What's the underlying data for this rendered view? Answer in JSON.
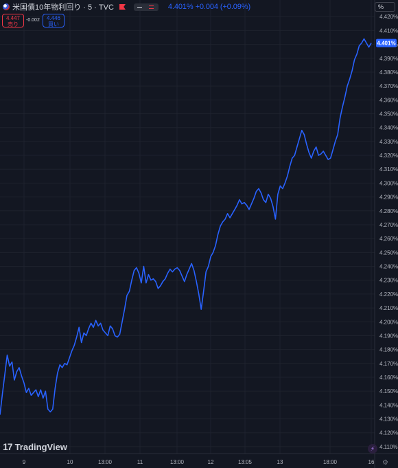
{
  "header": {
    "title": "米国債10年物利回り · 5 · TVC",
    "quote_last": "4.401%",
    "quote_change": "+0.004",
    "quote_change_pct": "(+0.09%)",
    "sell_price": "4.447",
    "sell_label": "売り",
    "spread": "-0.002",
    "buy_price": "4.446",
    "buy_label": "買い",
    "scale_label": "%"
  },
  "footer": {
    "brand": "TradingView"
  },
  "colors": {
    "background": "#131722",
    "line": "#2962ff",
    "sell": "#f23645",
    "buy": "#2962ff",
    "grid": "#1e222d",
    "text": "#d1d4dc"
  },
  "chart_data": {
    "type": "line",
    "yaxis_unit": "%",
    "ylim": [
      4.105,
      4.432
    ],
    "y_ticks": [
      "4.420%",
      "4.410%",
      "4.400%",
      "4.390%",
      "4.380%",
      "4.370%",
      "4.360%",
      "4.350%",
      "4.340%",
      "4.330%",
      "4.320%",
      "4.310%",
      "4.300%",
      "4.290%",
      "4.280%",
      "4.270%",
      "4.260%",
      "4.250%",
      "4.240%",
      "4.230%",
      "4.220%",
      "4.210%",
      "4.200%",
      "4.190%",
      "4.180%",
      "4.170%",
      "4.160%",
      "4.150%",
      "4.140%",
      "4.130%",
      "4.120%",
      "4.110%"
    ],
    "x_ticks": [
      "9",
      "10",
      "13:00",
      "11",
      "13:00",
      "12",
      "13:05",
      "13",
      "18:00",
      "16"
    ],
    "last_value_label": "4.401%",
    "last_value": 4.401,
    "grid": true,
    "series": [
      {
        "values": [
          4.133,
          4.148,
          4.162,
          4.176,
          4.168,
          4.171,
          4.158,
          4.164,
          4.167,
          4.161,
          4.156,
          4.149,
          4.152,
          4.147,
          4.149,
          4.151,
          4.146,
          4.151,
          4.145,
          4.15,
          4.137,
          4.135,
          4.137,
          4.152,
          4.163,
          4.169,
          4.167,
          4.17,
          4.169,
          4.174,
          4.179,
          4.183,
          4.189,
          4.196,
          4.185,
          4.192,
          4.19,
          4.195,
          4.199,
          4.196,
          4.201,
          4.197,
          4.199,
          4.194,
          4.192,
          4.19,
          4.197,
          4.195,
          4.19,
          4.189,
          4.191,
          4.2,
          4.209,
          4.219,
          4.222,
          4.23,
          4.237,
          4.239,
          4.235,
          4.228,
          4.24,
          4.228,
          4.234,
          4.23,
          4.231,
          4.229,
          4.224,
          4.226,
          4.229,
          4.231,
          4.235,
          4.238,
          4.236,
          4.238,
          4.239,
          4.237,
          4.233,
          4.229,
          4.234,
          4.238,
          4.242,
          4.237,
          4.229,
          4.22,
          4.209,
          4.222,
          4.236,
          4.24,
          4.247,
          4.25,
          4.255,
          4.263,
          4.269,
          4.272,
          4.274,
          4.278,
          4.275,
          4.278,
          4.281,
          4.284,
          4.288,
          4.285,
          4.286,
          4.284,
          4.281,
          4.285,
          4.289,
          4.294,
          4.296,
          4.293,
          4.288,
          4.286,
          4.292,
          4.289,
          4.283,
          4.274,
          4.292,
          4.298,
          4.296,
          4.3,
          4.305,
          4.312,
          4.318,
          4.32,
          4.326,
          4.332,
          4.338,
          4.335,
          4.328,
          4.322,
          4.318,
          4.323,
          4.326,
          4.32,
          4.321,
          4.323,
          4.32,
          4.317,
          4.318,
          4.324,
          4.33,
          4.335,
          4.347,
          4.355,
          4.362,
          4.37,
          4.375,
          4.381,
          4.389,
          4.393,
          4.399,
          4.401,
          4.404,
          4.401,
          4.398,
          4.401
        ]
      }
    ]
  }
}
